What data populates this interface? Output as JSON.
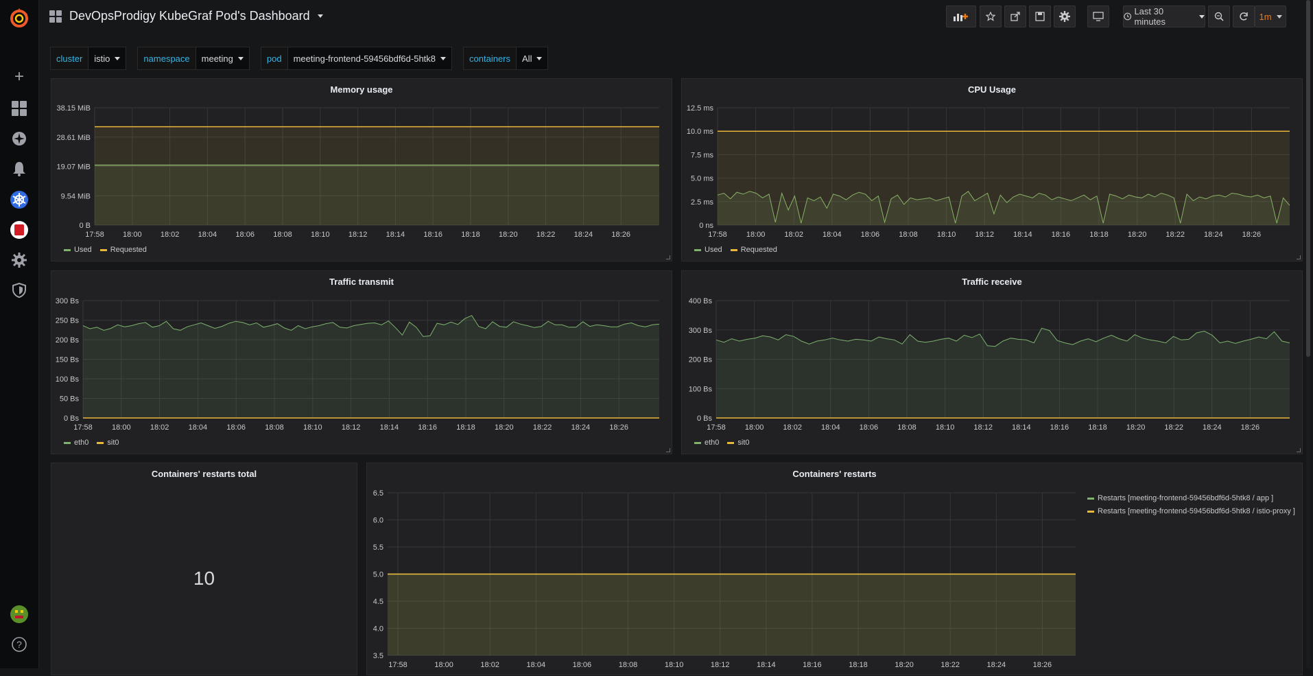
{
  "nav": {
    "items": [
      {
        "name": "add-icon",
        "glyph": "+"
      },
      {
        "name": "dashboards-icon",
        "glyph": ""
      },
      {
        "name": "explore-icon",
        "glyph": "✦"
      },
      {
        "name": "alerting-icon",
        "glyph": "🔔"
      },
      {
        "name": "kubernetes-icon",
        "glyph": "⎈"
      },
      {
        "name": "app-plugin-icon",
        "glyph": "■"
      },
      {
        "name": "configuration-icon",
        "glyph": "⚙"
      },
      {
        "name": "admin-shield-icon",
        "glyph": "⛨"
      }
    ],
    "help": "?"
  },
  "header": {
    "title": "DevOpsProdigy KubeGraf Pod's Dashboard",
    "time_range": "Last 30 minutes",
    "refresh": "1m"
  },
  "variables": [
    {
      "label": "cluster",
      "value": "istio"
    },
    {
      "label": "namespace",
      "value": "meeting"
    },
    {
      "label": "pod",
      "value": "meeting-frontend-59456bdf6d-5htk8"
    },
    {
      "label": "containers",
      "value": "All"
    }
  ],
  "colors": {
    "green": "#7eb26d",
    "yellow": "#eab839",
    "accent": "#33b5e5"
  },
  "time_ticks": [
    "17:58",
    "18:00",
    "18:02",
    "18:04",
    "18:06",
    "18:08",
    "18:10",
    "18:12",
    "18:14",
    "18:16",
    "18:18",
    "18:20",
    "18:22",
    "18:24",
    "18:26"
  ],
  "panels": {
    "memory": {
      "title": "Memory usage",
      "legend": [
        "Used",
        "Requested"
      ]
    },
    "cpu": {
      "title": "CPU Usage",
      "legend": [
        "Used",
        "Requested"
      ]
    },
    "tx": {
      "title": "Traffic transmit",
      "legend": [
        "eth0",
        "sit0"
      ]
    },
    "rx": {
      "title": "Traffic receive",
      "legend": [
        "eth0",
        "sit0"
      ]
    },
    "restarts_total": {
      "title": "Containers' restarts total",
      "value": "10"
    },
    "restarts": {
      "title": "Containers' restarts",
      "legend": [
        "Restarts [meeting-frontend-59456bdf6d-5htk8 / app ]",
        "Restarts [meeting-frontend-59456bdf6d-5htk8 / istio-proxy ]"
      ]
    }
  },
  "chart_data": [
    {
      "type": "area",
      "title": "Memory usage",
      "y_ticks": [
        "0 B",
        "9.54 MiB",
        "19.07 MiB",
        "28.61 MiB",
        "38.15 MiB"
      ],
      "ylim": [
        0,
        38.15
      ],
      "series": [
        {
          "name": "Used",
          "color": "#7eb26d",
          "values": [
            19.5
          ]
        },
        {
          "name": "Requested",
          "color": "#eab839",
          "values": [
            32.0
          ]
        }
      ]
    },
    {
      "type": "area",
      "title": "CPU Usage",
      "y_ticks": [
        "0 ns",
        "2.5 ms",
        "5.0 ms",
        "7.5 ms",
        "10.0 ms",
        "12.5 ms"
      ],
      "ylim": [
        0,
        12.5
      ],
      "series": [
        {
          "name": "Used",
          "color": "#7eb26d",
          "values": [
            3.2,
            3.4,
            2.8,
            3.5,
            3.3,
            3.6,
            3.4,
            2.9,
            3.3,
            0.3,
            3.4,
            1.6,
            3.1,
            0.2,
            2.9,
            2.6,
            3.0,
            1.8,
            3.3,
            3.1,
            2.7,
            3.2,
            3.5,
            3.3,
            2.6,
            3.1,
            0.3,
            2.8,
            3.2,
            2.2,
            2.9,
            2.7,
            2.8,
            2.9,
            2.6,
            2.8,
            3.0,
            0.2,
            3.1,
            3.6,
            2.6,
            3.0,
            3.4,
            1.2,
            3.2,
            2.4,
            3.0,
            3.3,
            3.1,
            2.9,
            3.4,
            3.2,
            2.7,
            3.0,
            2.8,
            2.6,
            2.9,
            3.2,
            2.7,
            3.1,
            0.2,
            3.3,
            3.1,
            2.8,
            3.2,
            3.0,
            2.9,
            3.3,
            3.0,
            3.4,
            3.2,
            2.9,
            0.2,
            3.3,
            2.6,
            3.0,
            2.8,
            3.1,
            3.2,
            3.0,
            3.4,
            3.3,
            3.1,
            3.0,
            3.2,
            2.9,
            3.1,
            0.2,
            2.9,
            2.1
          ]
        },
        {
          "name": "Requested",
          "color": "#eab839",
          "values": [
            10.0
          ]
        }
      ]
    },
    {
      "type": "area",
      "title": "Traffic transmit",
      "y_ticks": [
        "0 Bs",
        "50 Bs",
        "100 Bs",
        "150 Bs",
        "200 Bs",
        "250 Bs",
        "300 Bs"
      ],
      "ylim": [
        0,
        300
      ],
      "series": [
        {
          "name": "eth0",
          "color": "#7eb26d",
          "values": [
            236,
            228,
            232,
            224,
            229,
            238,
            233,
            236,
            241,
            244,
            232,
            236,
            247,
            228,
            224,
            233,
            238,
            243,
            236,
            229,
            234,
            242,
            247,
            244,
            238,
            243,
            232,
            236,
            241,
            230,
            224,
            236,
            228,
            233,
            236,
            241,
            244,
            232,
            230,
            236,
            239,
            242,
            243,
            238,
            248,
            231,
            212,
            245,
            232,
            208,
            210,
            242,
            238,
            245,
            239,
            254,
            262,
            234,
            228,
            246,
            234,
            232,
            246,
            240,
            236,
            231,
            234,
            247,
            238,
            238,
            232,
            232,
            246,
            234,
            238,
            236,
            233,
            233,
            240,
            243,
            236,
            233,
            238,
            240
          ]
        },
        {
          "name": "sit0",
          "color": "#eab839",
          "values": [
            0
          ]
        }
      ]
    },
    {
      "type": "area",
      "title": "Traffic receive",
      "y_ticks": [
        "0 Bs",
        "100 Bs",
        "200 Bs",
        "300 Bs",
        "400 Bs"
      ],
      "ylim": [
        0,
        400
      ],
      "series": [
        {
          "name": "eth0",
          "color": "#7eb26d",
          "values": [
            266,
            258,
            270,
            262,
            268,
            272,
            280,
            276,
            266,
            284,
            278,
            262,
            252,
            262,
            266,
            272,
            266,
            262,
            268,
            266,
            262,
            276,
            270,
            266,
            252,
            284,
            262,
            258,
            262,
            268,
            272,
            262,
            282,
            274,
            286,
            246,
            244,
            262,
            272,
            268,
            266,
            256,
            306,
            298,
            264,
            256,
            250,
            262,
            270,
            260,
            272,
            282,
            270,
            262,
            284,
            272,
            266,
            262,
            256,
            278,
            266,
            268,
            290,
            296,
            282,
            256,
            262,
            254,
            262,
            268,
            276,
            270,
            294,
            262,
            256
          ]
        },
        {
          "name": "sit0",
          "color": "#eab839",
          "values": [
            0
          ]
        }
      ]
    },
    {
      "type": "area",
      "title": "Containers' restarts",
      "y_ticks": [
        "3.5",
        "4.0",
        "4.5",
        "5.0",
        "5.5",
        "6.0",
        "6.5"
      ],
      "ylim": [
        3.5,
        6.5
      ],
      "series": [
        {
          "name": "Restarts [meeting-frontend-59456bdf6d-5htk8 / app ]",
          "color": "#7eb26d",
          "values": [
            5.0
          ]
        },
        {
          "name": "Restarts [meeting-frontend-59456bdf6d-5htk8 / istio-proxy ]",
          "color": "#eab839",
          "values": [
            5.0
          ]
        }
      ]
    }
  ]
}
